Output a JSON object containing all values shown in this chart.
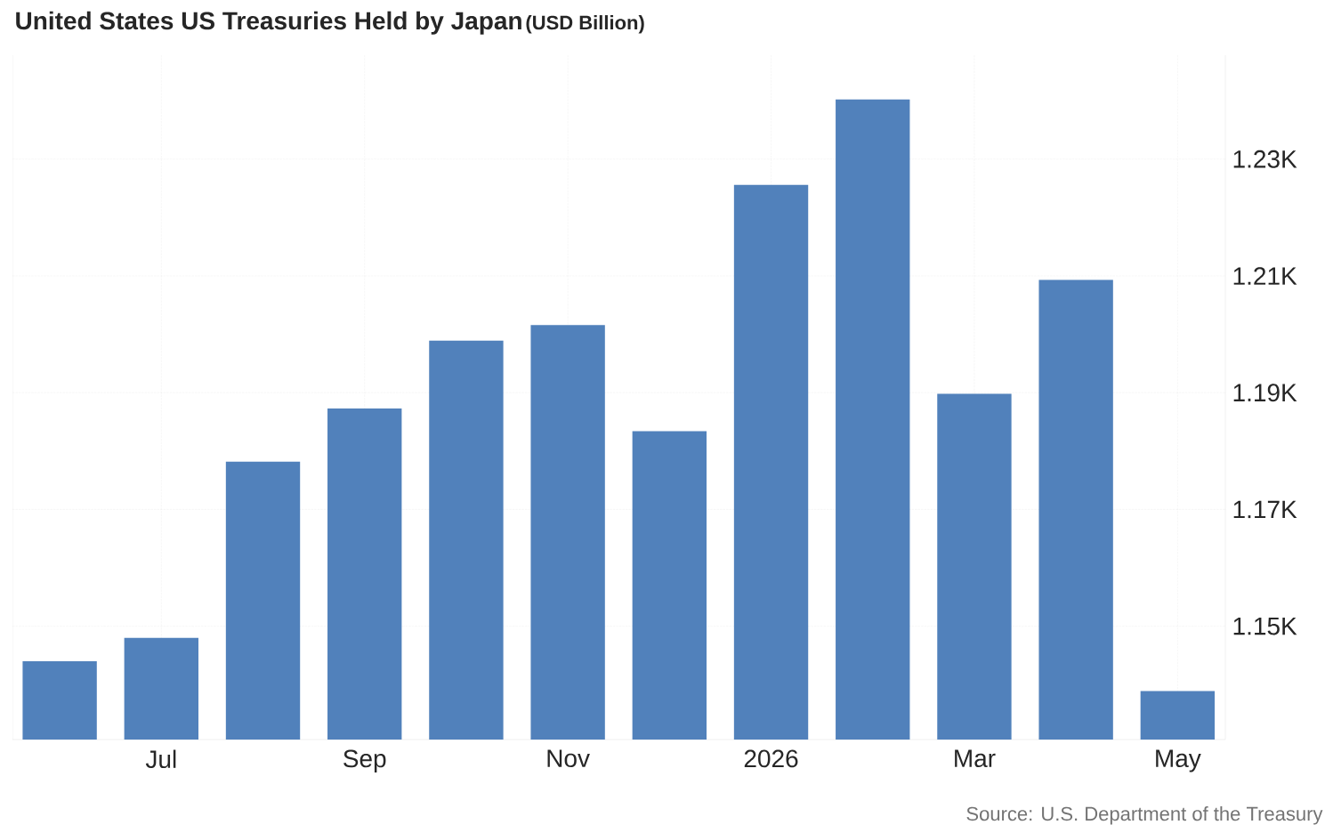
{
  "chart_data": {
    "type": "bar",
    "title": "United States US Treasuries Held by Japan",
    "subtitle": "(USD Billion)",
    "categories": [
      null,
      "Jul",
      null,
      "Sep",
      null,
      "Nov",
      null,
      "2026",
      null,
      "Mar",
      null,
      "May"
    ],
    "values": [
      1144,
      1148,
      1178.2,
      1187.3,
      1198.9,
      1201.6,
      1183.4,
      1225.6,
      1240.2,
      1189.8,
      1209.3,
      1138.9
    ],
    "color": "#5181bb",
    "ylim": [
      1130.6,
      1247.8
    ],
    "yticks": [
      {
        "value": 1150,
        "label": "1.15K"
      },
      {
        "value": 1170,
        "label": "1.17K"
      },
      {
        "value": 1190,
        "label": "1.19K"
      },
      {
        "value": 1210,
        "label": "1.21K"
      },
      {
        "value": 1230,
        "label": "1.23K"
      }
    ],
    "grid": true,
    "annotations": [
      "Source: U.S. Department of the Treasury"
    ]
  }
}
